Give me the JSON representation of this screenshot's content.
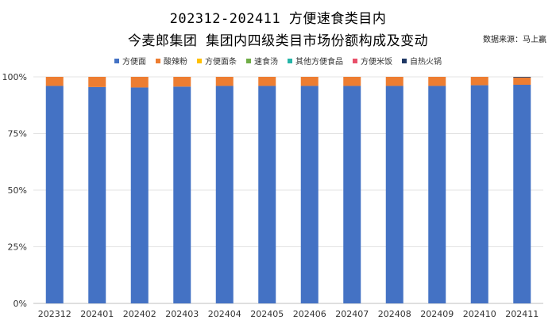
{
  "chart_data": {
    "type": "bar",
    "stacked": true,
    "title": "202312-202411 方便速食类目内",
    "subtitle": "今麦郎集团 集团内四级类目市场份额构成及变动",
    "source": "数据来源：马上赢",
    "categories": [
      "202312",
      "202401",
      "202402",
      "202403",
      "202404",
      "202405",
      "202406",
      "202407",
      "202408",
      "202409",
      "202410",
      "202411"
    ],
    "ylim": [
      0,
      100
    ],
    "yticks": [
      "0%",
      "25%",
      "50%",
      "75%",
      "100%"
    ],
    "ytick_values": [
      0,
      25,
      50,
      75,
      100
    ],
    "grid": true,
    "legend_position": "top",
    "series": [
      {
        "name": "方便面",
        "color": "#4472C4",
        "values": [
          96.0,
          95.5,
          95.3,
          95.7,
          96.0,
          96.0,
          96.0,
          96.0,
          96.0,
          96.0,
          96.3,
          96.5
        ]
      },
      {
        "name": "酸辣粉",
        "color": "#ED7D31",
        "values": [
          4.0,
          4.5,
          4.7,
          4.3,
          4.0,
          4.0,
          4.0,
          4.0,
          4.0,
          4.0,
          3.7,
          3.2
        ]
      },
      {
        "name": "方便面条",
        "color": "#FFC000",
        "values": [
          0,
          0,
          0,
          0,
          0,
          0,
          0,
          0,
          0,
          0,
          0,
          0
        ]
      },
      {
        "name": "速食汤",
        "color": "#70AD47",
        "values": [
          0,
          0,
          0,
          0,
          0,
          0,
          0,
          0,
          0,
          0,
          0,
          0
        ]
      },
      {
        "name": "其他方便食品",
        "color": "#26B5A8",
        "values": [
          0,
          0,
          0,
          0,
          0,
          0,
          0,
          0,
          0,
          0,
          0,
          0
        ]
      },
      {
        "name": "方便米饭",
        "color": "#E8506A",
        "values": [
          0,
          0,
          0,
          0,
          0,
          0,
          0,
          0,
          0,
          0,
          0,
          0
        ]
      },
      {
        "name": "自热火锅",
        "color": "#1F3864",
        "values": [
          0,
          0,
          0,
          0,
          0,
          0,
          0,
          0,
          0,
          0,
          0,
          0.3
        ]
      }
    ]
  }
}
